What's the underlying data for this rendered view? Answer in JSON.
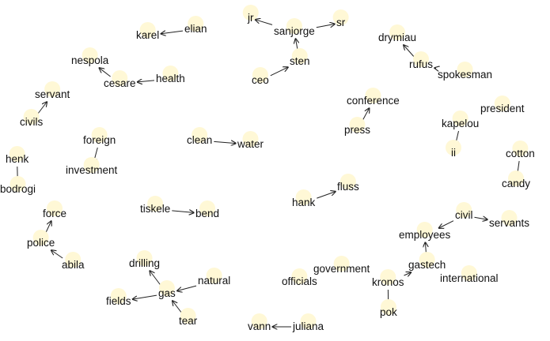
{
  "graph": {
    "nodes": [
      {
        "id": "jr",
        "label": "jr"
      },
      {
        "id": "sanjorge",
        "label": "sanjorge"
      },
      {
        "id": "sr",
        "label": "sr"
      },
      {
        "id": "karel",
        "label": "karel"
      },
      {
        "id": "elian",
        "label": "elian"
      },
      {
        "id": "drymiau",
        "label": "drymiau"
      },
      {
        "id": "nespola",
        "label": "nespola"
      },
      {
        "id": "sten",
        "label": "sten"
      },
      {
        "id": "rufus",
        "label": "rufus"
      },
      {
        "id": "health",
        "label": "health"
      },
      {
        "id": "cesare",
        "label": "cesare"
      },
      {
        "id": "ceo",
        "label": "ceo"
      },
      {
        "id": "spokesman",
        "label": "spokesman"
      },
      {
        "id": "servant",
        "label": "servant"
      },
      {
        "id": "conference",
        "label": "conference"
      },
      {
        "id": "president",
        "label": "president"
      },
      {
        "id": "civils",
        "label": "civils"
      },
      {
        "id": "kapelou",
        "label": "kapelou"
      },
      {
        "id": "press",
        "label": "press"
      },
      {
        "id": "foreign",
        "label": "foreign"
      },
      {
        "id": "clean",
        "label": "clean"
      },
      {
        "id": "water",
        "label": "water"
      },
      {
        "id": "ii",
        "label": "ii"
      },
      {
        "id": "cotton",
        "label": "cotton"
      },
      {
        "id": "henk",
        "label": "henk"
      },
      {
        "id": "investment",
        "label": "investment"
      },
      {
        "id": "bodrogi",
        "label": "bodrogi"
      },
      {
        "id": "candy",
        "label": "candy"
      },
      {
        "id": "fluss",
        "label": "fluss"
      },
      {
        "id": "hank",
        "label": "hank"
      },
      {
        "id": "tiskele",
        "label": "tiskele"
      },
      {
        "id": "bend",
        "label": "bend"
      },
      {
        "id": "force",
        "label": "force"
      },
      {
        "id": "civil",
        "label": "civil"
      },
      {
        "id": "servants",
        "label": "servants"
      },
      {
        "id": "employees",
        "label": "employees"
      },
      {
        "id": "police",
        "label": "police"
      },
      {
        "id": "drilling",
        "label": "drilling"
      },
      {
        "id": "abila",
        "label": "abila"
      },
      {
        "id": "gastech",
        "label": "gastech"
      },
      {
        "id": "government",
        "label": "government"
      },
      {
        "id": "natural",
        "label": "natural"
      },
      {
        "id": "officials",
        "label": "officials"
      },
      {
        "id": "international",
        "label": "international"
      },
      {
        "id": "kronos",
        "label": "kronos"
      },
      {
        "id": "gas",
        "label": "gas"
      },
      {
        "id": "fields",
        "label": "fields"
      },
      {
        "id": "pok",
        "label": "pok"
      },
      {
        "id": "tear",
        "label": "tear"
      },
      {
        "id": "vann",
        "label": "vann"
      },
      {
        "id": "juliana",
        "label": "juliana"
      }
    ],
    "edges": [
      {
        "from": "sanjorge",
        "to": "jr"
      },
      {
        "from": "sanjorge",
        "to": "sr"
      },
      {
        "from": "elian",
        "to": "karel"
      },
      {
        "from": "sten",
        "to": "sanjorge"
      },
      {
        "from": "ceo",
        "to": "sten"
      },
      {
        "from": "rufus",
        "to": "drymiau"
      },
      {
        "from": "spokesman",
        "to": "rufus"
      },
      {
        "from": "cesare",
        "to": "nespola"
      },
      {
        "from": "health",
        "to": "cesare"
      },
      {
        "from": "civils",
        "to": "servant"
      },
      {
        "from": "press",
        "to": "conference"
      },
      {
        "from": "kapelou",
        "to": "ii"
      },
      {
        "from": "foreign",
        "to": "investment"
      },
      {
        "from": "clean",
        "to": "water"
      },
      {
        "from": "cotton",
        "to": "candy"
      },
      {
        "from": "henk",
        "to": "bodrogi"
      },
      {
        "from": "hank",
        "to": "fluss"
      },
      {
        "from": "tiskele",
        "to": "bend"
      },
      {
        "from": "police",
        "to": "force"
      },
      {
        "from": "abila",
        "to": "police"
      },
      {
        "from": "civil",
        "to": "servants"
      },
      {
        "from": "civil",
        "to": "employees"
      },
      {
        "from": "gastech",
        "to": "employees"
      },
      {
        "from": "kronos",
        "to": "gastech"
      },
      {
        "from": "kronos",
        "to": "pok"
      },
      {
        "from": "gas",
        "to": "drilling"
      },
      {
        "from": "natural",
        "to": "gas"
      },
      {
        "from": "gas",
        "to": "fields"
      },
      {
        "from": "tear",
        "to": "gas"
      },
      {
        "from": "juliana",
        "to": "vann"
      }
    ]
  }
}
